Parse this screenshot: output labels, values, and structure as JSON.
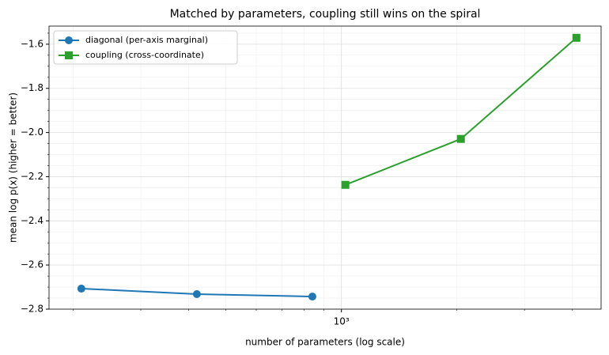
{
  "chart_data": {
    "type": "line",
    "title": "Matched by parameters, coupling still wins on the spiral",
    "xlabel": "number of parameters (log scale)",
    "ylabel": "mean log p(x) (higher = better)",
    "xscale": "log",
    "xlim": [
      173,
      4750
    ],
    "ylim": [
      -2.8,
      -1.518
    ],
    "xticks": [
      {
        "value": 1000,
        "label": "10³"
      }
    ],
    "xminorticks": [
      200,
      300,
      400,
      500,
      600,
      700,
      800,
      900,
      2000,
      3000,
      4000
    ],
    "yticks": [
      {
        "value": -2.8,
        "label": "−2.8"
      },
      {
        "value": -2.6,
        "label": "−2.6"
      },
      {
        "value": -2.4,
        "label": "−2.4"
      },
      {
        "value": -2.2,
        "label": "−2.2"
      },
      {
        "value": -2.0,
        "label": "−2.0"
      },
      {
        "value": -1.8,
        "label": "−1.8"
      },
      {
        "value": -1.6,
        "label": "−1.6"
      }
    ],
    "yminorticks": [
      -2.75,
      -2.7,
      -2.65,
      -2.55,
      -2.5,
      -2.45,
      -2.35,
      -2.3,
      -2.25,
      -2.15,
      -2.1,
      -2.05,
      -1.95,
      -1.9,
      -1.85,
      -1.75,
      -1.7,
      -1.65,
      -1.55
    ],
    "grid": true,
    "legend": "upper left",
    "series": [
      {
        "name": "diagonal (per-axis marginal)",
        "color": "#1f77b4",
        "marker": "circle",
        "x": [
          210,
          420,
          840
        ],
        "values": [
          -2.707,
          -2.732,
          -2.743
        ]
      },
      {
        "name": "coupling (cross-coordinate)",
        "color": "#2ca02c",
        "marker": "square",
        "x": [
          1024,
          2048,
          4096
        ],
        "values": [
          -2.237,
          -2.029,
          -1.571
        ]
      }
    ]
  }
}
